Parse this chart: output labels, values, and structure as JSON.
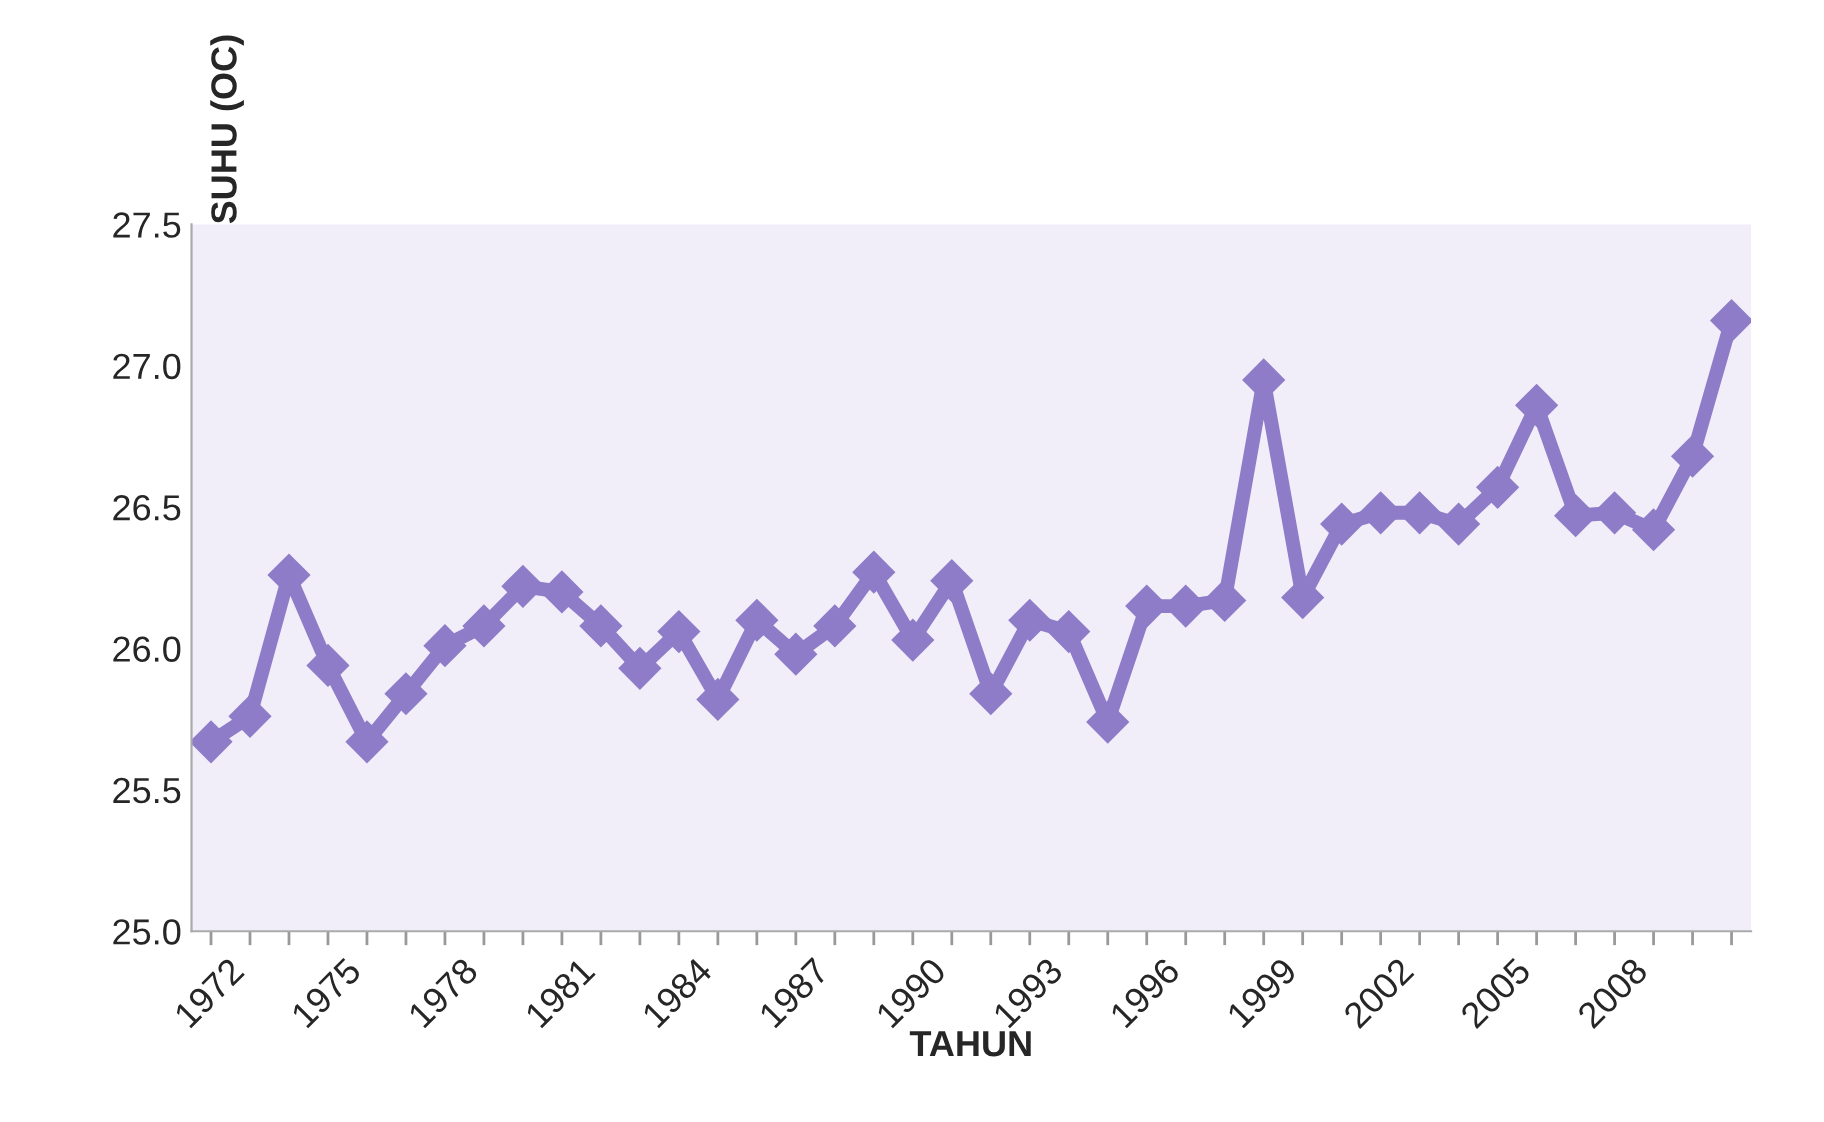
{
  "chart_data": {
    "type": "line",
    "xlabel": "TAHUN",
    "ylabel": "SUHU (OC)",
    "x": [
      1972,
      1973,
      1974,
      1975,
      1976,
      1977,
      1978,
      1979,
      1980,
      1981,
      1982,
      1983,
      1984,
      1985,
      1986,
      1987,
      1988,
      1989,
      1990,
      1991,
      1992,
      1993,
      1994,
      1995,
      1996,
      1997,
      1998,
      1999,
      2000,
      2001,
      2002,
      2003,
      2004,
      2005,
      2006,
      2007,
      2008,
      2009,
      2010,
      2011
    ],
    "series": [
      {
        "color": "#8e7cc8",
        "values": [
          25.67,
          25.76,
          26.26,
          25.94,
          25.67,
          25.84,
          26.01,
          26.08,
          26.22,
          26.2,
          26.08,
          25.93,
          26.06,
          25.82,
          26.1,
          25.98,
          26.08,
          26.27,
          26.03,
          26.24,
          25.84,
          26.1,
          26.06,
          25.74,
          26.15,
          26.15,
          26.17,
          26.95,
          26.18,
          26.44,
          26.48,
          26.48,
          26.44,
          26.57,
          26.86,
          26.47,
          26.48,
          26.42,
          26.68,
          27.16
        ]
      }
    ],
    "xlim": [
      1971.5,
      2011.5
    ],
    "xticks": [
      1972,
      {
        "value": 1973,
        "label": null
      },
      {
        "value": 1974,
        "label": null
      },
      1975,
      {
        "value": 1976,
        "label": null
      },
      {
        "value": 1977,
        "label": null
      },
      1978,
      {
        "value": 1979,
        "label": null
      },
      {
        "value": 1980,
        "label": null
      },
      1981,
      {
        "value": 1982,
        "label": null
      },
      {
        "value": 1983,
        "label": null
      },
      1984,
      {
        "value": 1985,
        "label": null
      },
      {
        "value": 1986,
        "label": null
      },
      1987,
      {
        "value": 1988,
        "label": null
      },
      {
        "value": 1989,
        "label": null
      },
      1990,
      {
        "value": 1991,
        "label": null
      },
      {
        "value": 1992,
        "label": null
      },
      1993,
      {
        "value": 1994,
        "label": null
      },
      {
        "value": 1995,
        "label": null
      },
      1996,
      {
        "value": 1997,
        "label": null
      },
      {
        "value": 1998,
        "label": null
      },
      1999,
      {
        "value": 2000,
        "label": null
      },
      {
        "value": 2001,
        "label": null
      },
      2002,
      {
        "value": 2003,
        "label": null
      },
      {
        "value": 2004,
        "label": null
      },
      2005,
      {
        "value": 2006,
        "label": null
      },
      {
        "value": 2007,
        "label": null
      },
      2008,
      {
        "value": 2009,
        "label": null
      },
      {
        "value": 2010,
        "label": null
      },
      {
        "value": 2011,
        "label": null
      }
    ],
    "ylim": [
      25.0,
      27.5
    ],
    "yticks": [
      {
        "value": 25.0,
        "label": "25.0"
      },
      25.5,
      {
        "value": 26.0,
        "label": "26.0"
      },
      26.5,
      {
        "value": 27.0,
        "label": "27.0"
      },
      27.5
    ],
    "grid": false,
    "legend": false,
    "marker": "diamond",
    "line_style": "solid"
  }
}
